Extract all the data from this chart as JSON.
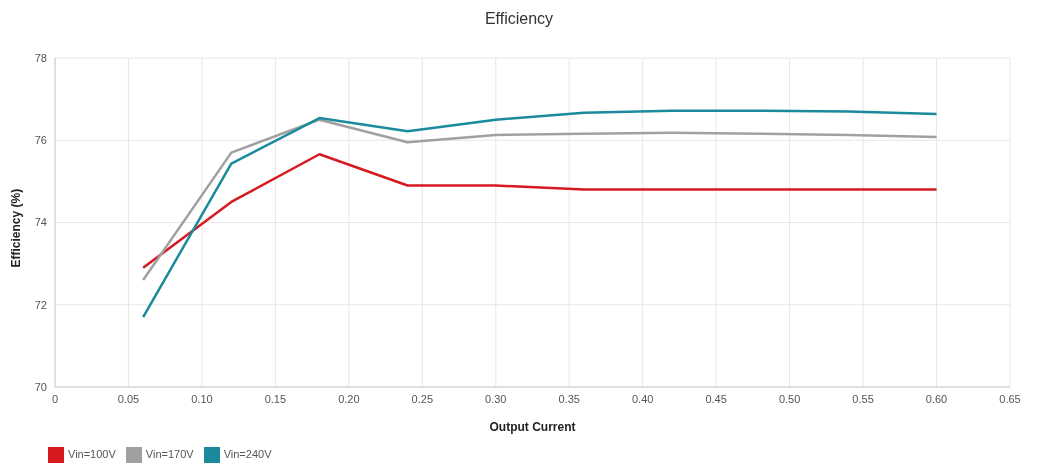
{
  "chart_data": {
    "type": "line",
    "title": "Efficiency",
    "xlabel": "Output Current",
    "ylabel": "Efficiency (%)",
    "x": [
      0.06,
      0.12,
      0.18,
      0.24,
      0.3,
      0.36,
      0.42,
      0.48,
      0.54,
      0.6
    ],
    "series": [
      {
        "name": "Vin=100V",
        "color": "#d71920",
        "values": [
          72.9,
          74.5,
          75.66,
          74.9,
          74.9,
          74.8,
          74.8,
          74.8,
          74.8,
          74.8
        ]
      },
      {
        "name": "Vin=170V",
        "color": "#a0a0a0",
        "values": [
          72.6,
          75.7,
          76.5,
          75.95,
          76.13,
          76.16,
          76.18,
          76.16,
          76.13,
          76.08
        ]
      },
      {
        "name": "Vin=240V",
        "color": "#1a8a9c",
        "values": [
          71.7,
          75.43,
          76.54,
          76.22,
          76.5,
          76.67,
          76.72,
          76.72,
          76.7,
          76.64
        ]
      }
    ],
    "xlim": [
      0,
      0.65
    ],
    "xticks": [
      0,
      {
        "value": 0.05,
        "label": "0.05"
      },
      {
        "value": 0.1,
        "label": "0.10"
      },
      {
        "value": 0.15,
        "label": "0.15"
      },
      {
        "value": 0.2,
        "label": "0.20"
      },
      {
        "value": 0.25,
        "label": "0.25"
      },
      {
        "value": 0.3,
        "label": "0.30"
      },
      {
        "value": 0.35,
        "label": "0.35"
      },
      {
        "value": 0.4,
        "label": "0.40"
      },
      {
        "value": 0.45,
        "label": "0.45"
      },
      {
        "value": 0.5,
        "label": "0.50"
      },
      {
        "value": 0.55,
        "label": "0.55"
      },
      {
        "value": 0.6,
        "label": "0.60"
      },
      {
        "value": 0.65,
        "label": "0.65"
      }
    ],
    "ylim": [
      70,
      78
    ],
    "yticks": [
      70,
      72,
      74,
      76,
      78
    ],
    "grid": true,
    "legend": "bottom left",
    "marker": "none",
    "line_style": "solid"
  }
}
